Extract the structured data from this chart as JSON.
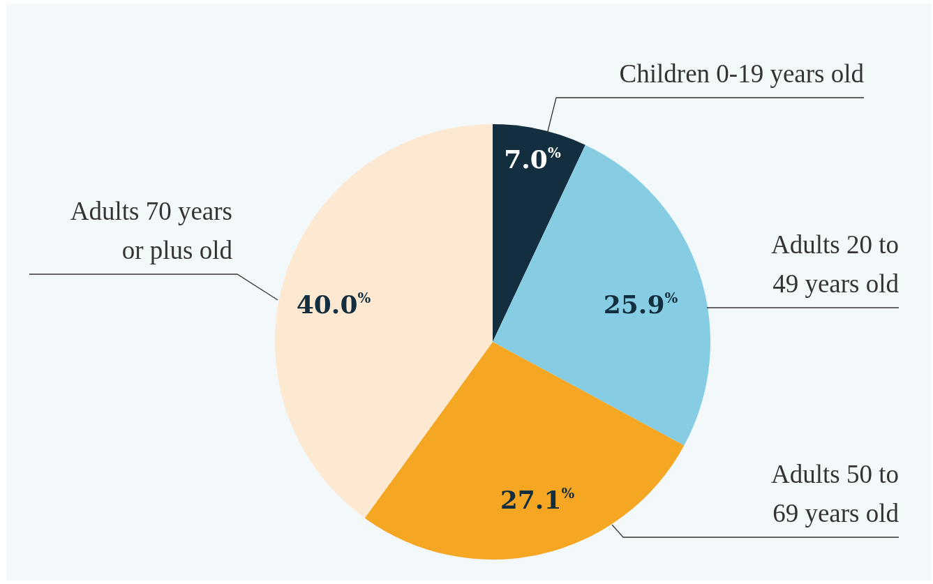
{
  "chart_data": {
    "type": "pie",
    "categories": [
      "Children 0-19 years old",
      "Adults 20 to 49 years old",
      "Adults 50 to 69 years old",
      "Adults 70 years or plus old"
    ],
    "values": [
      7.0,
      25.9,
      27.1,
      40.0
    ],
    "colors": [
      "#132e3f",
      "#86cde3",
      "#f5a623",
      "#fde9d2"
    ],
    "value_labels": [
      "7.0$^{%}$",
      "25.9$^{%}$",
      "27.1$^{%}$",
      "40.0$^{%}$"
    ]
  }
}
